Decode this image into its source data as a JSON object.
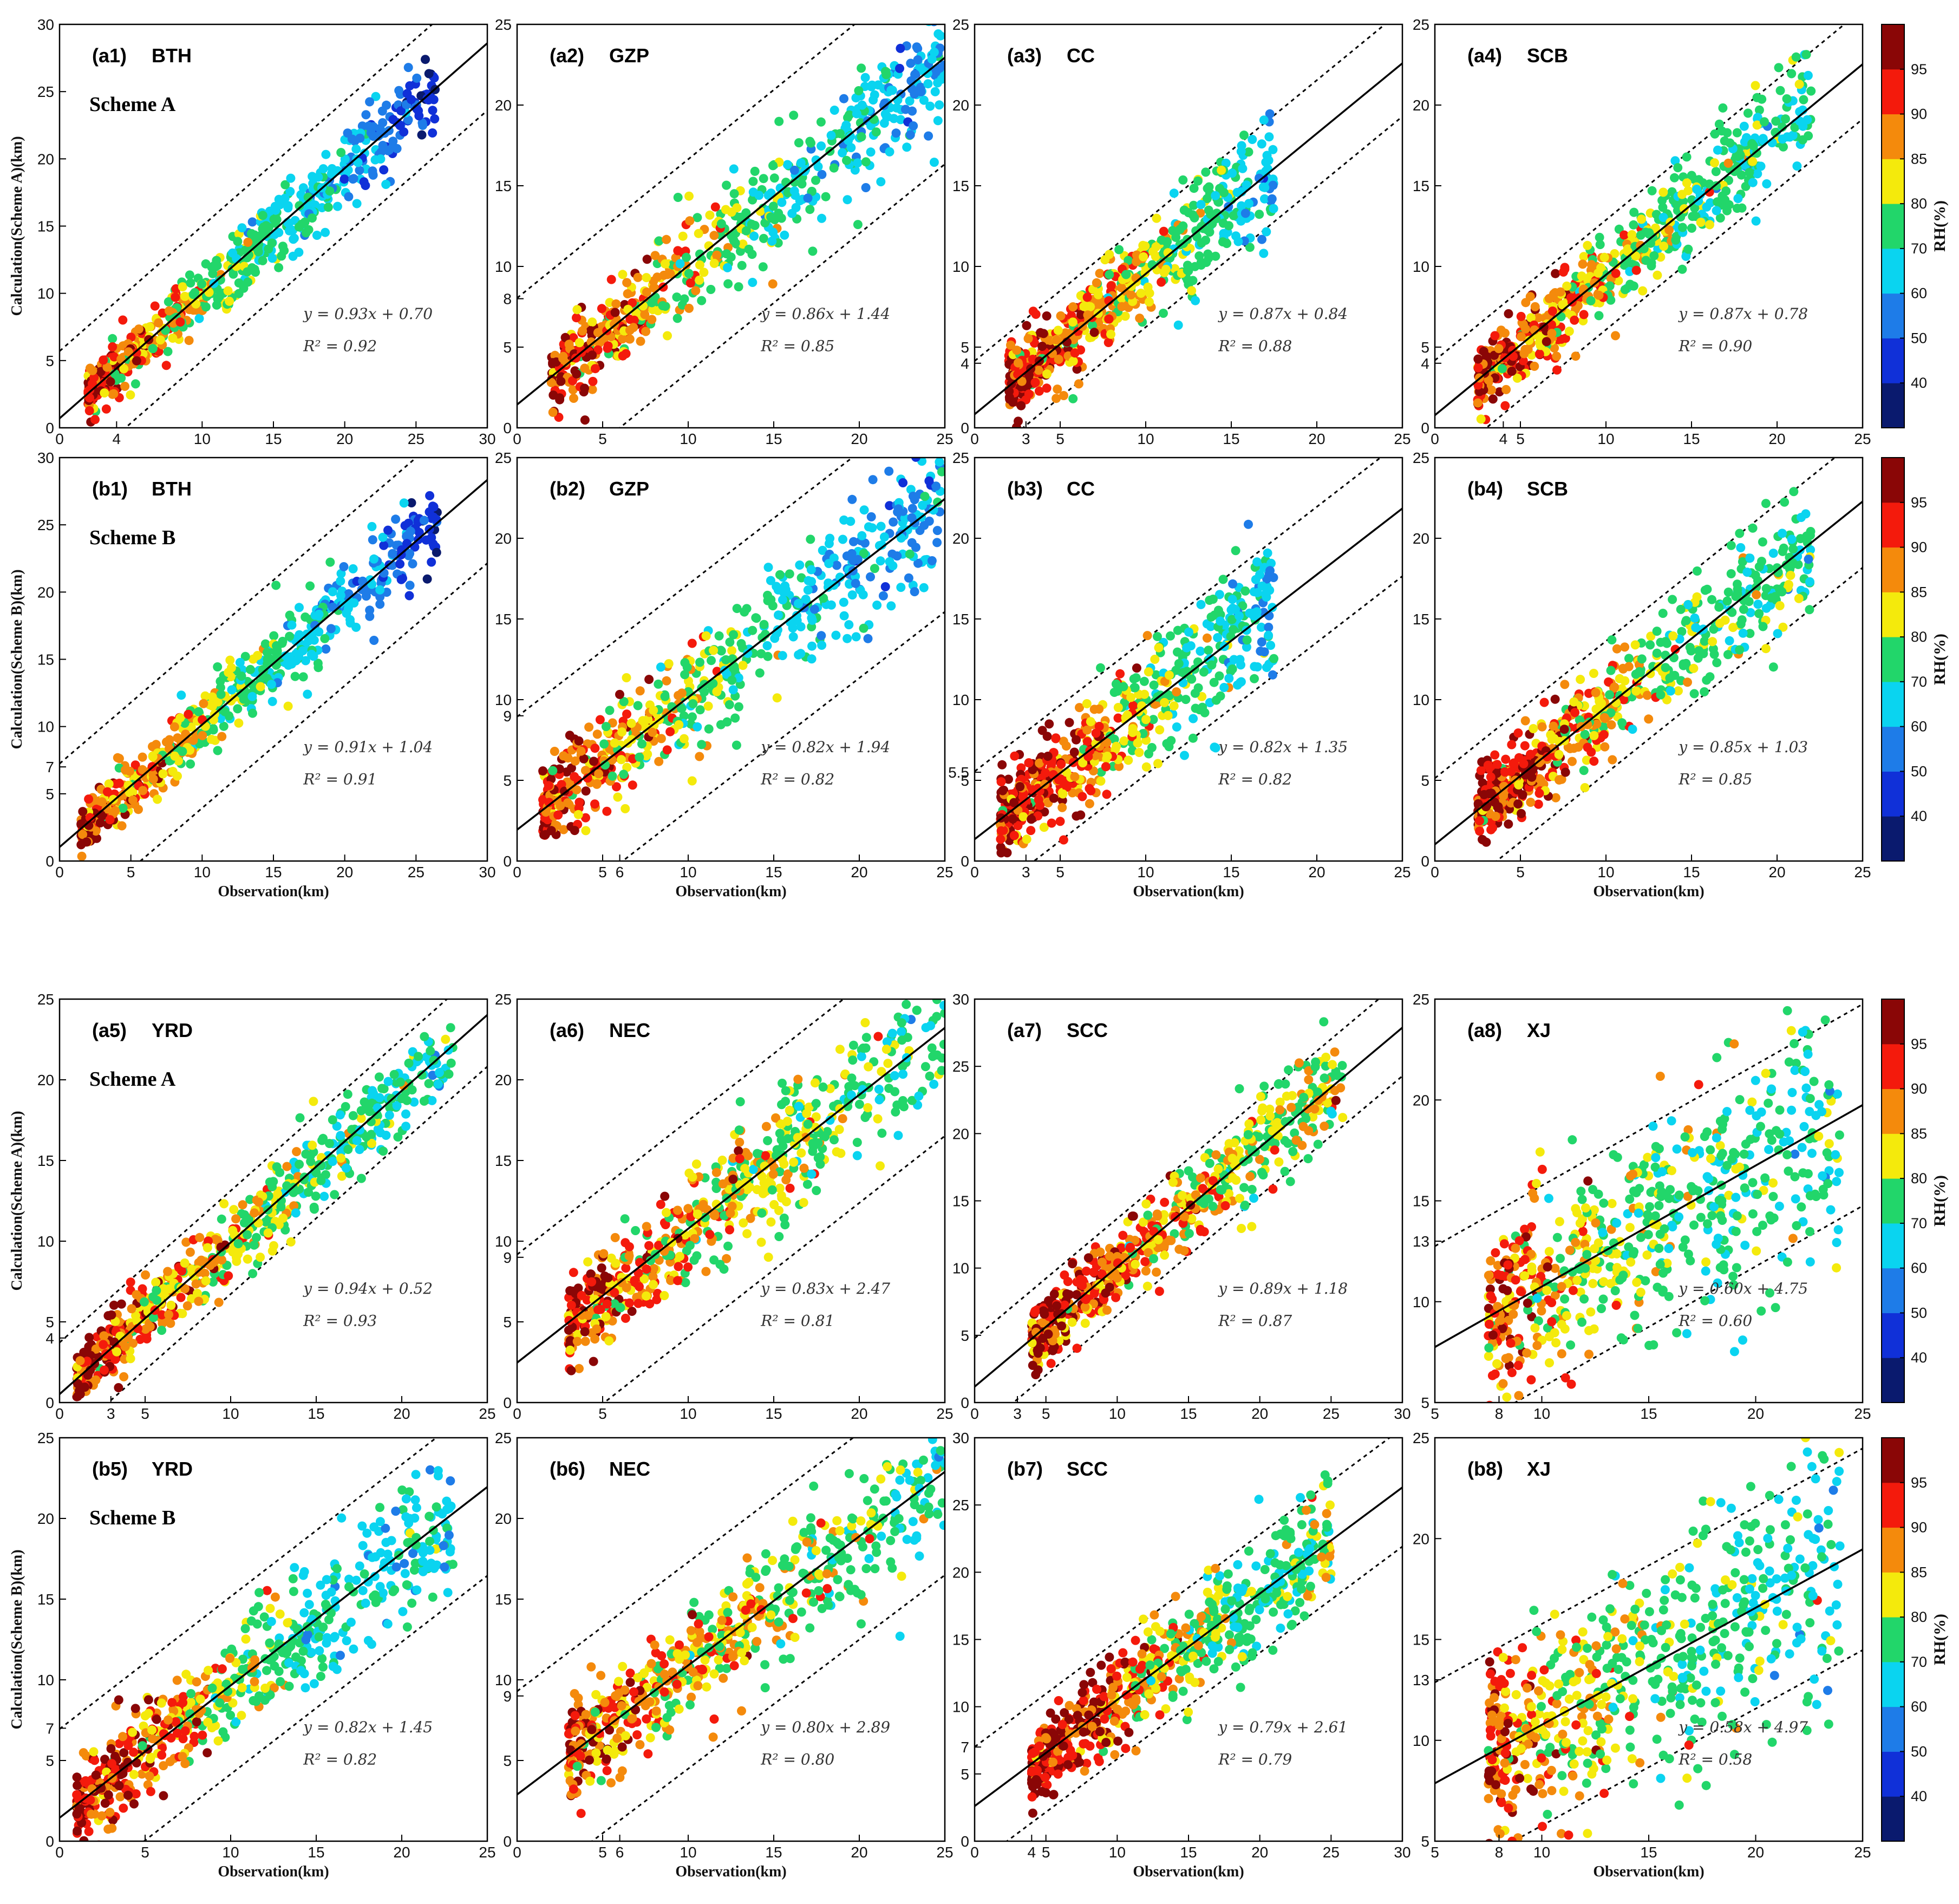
{
  "figure": {
    "xlabel": "Observation(km)",
    "ylabel_a": "Calculation(Scheme A)(km)",
    "ylabel_b": "Calculation(Scheme B)(km)",
    "scheme_a_label": "Scheme A",
    "scheme_b_label": "Scheme B"
  },
  "colorbar": {
    "label": "RH(%)",
    "ticks": [
      "40",
      "50",
      "60",
      "70",
      "80",
      "85",
      "90",
      "95"
    ],
    "colors": [
      "#0a1a6e",
      "#1030d8",
      "#1e7ce8",
      "#0ad4f0",
      "#22d66a",
      "#f4ea0c",
      "#f48a0c",
      "#f41a0c",
      "#8a0606"
    ]
  },
  "chart_data": [
    {
      "id": "a1",
      "type": "scatter",
      "label": "(a1)",
      "region": "BTH",
      "scheme": "A",
      "xlim": [
        0,
        30
      ],
      "ylim": [
        0,
        30
      ],
      "xticks": [
        "0",
        "4",
        "10",
        "15",
        "20",
        "25",
        "30"
      ],
      "yticks": [
        "0",
        "5",
        "10",
        "15",
        "20",
        "25",
        "30"
      ],
      "slope": 0.93,
      "intercept": 0.7,
      "r2": 0.92,
      "band": 5,
      "equation": "y = 0.93x + 0.70",
      "r2_text": "R² = 0.92",
      "obs_range": [
        2,
        26.5
      ],
      "rh_by_vis": [
        [
          2,
          93
        ],
        [
          8,
          84
        ],
        [
          14,
          72
        ],
        [
          20,
          62
        ],
        [
          26,
          45
        ]
      ]
    },
    {
      "id": "a2",
      "type": "scatter",
      "label": "(a2)",
      "region": "GZP",
      "scheme": "A",
      "xlim": [
        0,
        25
      ],
      "ylim": [
        0,
        25
      ],
      "xticks": [
        "0",
        "5",
        "10",
        "15",
        "20",
        "25"
      ],
      "yticks": [
        "0",
        "5",
        "8",
        "10",
        "15",
        "20",
        "25"
      ],
      "slope": 0.86,
      "intercept": 1.44,
      "r2": 0.85,
      "band": 6.6,
      "equation": "y = 0.86x + 1.44",
      "r2_text": "R² = 0.85",
      "obs_range": [
        2,
        25
      ],
      "rh_by_vis": [
        [
          2,
          92
        ],
        [
          8,
          84
        ],
        [
          14,
          75
        ],
        [
          20,
          67
        ],
        [
          25,
          58
        ]
      ]
    },
    {
      "id": "a3",
      "type": "scatter",
      "label": "(a3)",
      "region": "CC",
      "scheme": "A",
      "xlim": [
        0,
        25
      ],
      "ylim": [
        0,
        25
      ],
      "xticks": [
        "0",
        "3",
        "5",
        "10",
        "15",
        "20",
        "25"
      ],
      "yticks": [
        "0",
        "4",
        "5",
        "10",
        "15",
        "20",
        "25"
      ],
      "slope": 0.87,
      "intercept": 0.84,
      "r2": 0.88,
      "band": 3.3,
      "equation": "y = 0.87x + 0.84",
      "r2_text": "R² = 0.88",
      "obs_range": [
        2,
        17.5
      ],
      "rh_by_vis": [
        [
          2,
          95
        ],
        [
          6,
          88
        ],
        [
          10,
          82
        ],
        [
          14,
          72
        ],
        [
          17.5,
          62
        ]
      ]
    },
    {
      "id": "a4",
      "type": "scatter",
      "label": "(a4)",
      "region": "SCB",
      "scheme": "A",
      "xlim": [
        0,
        25
      ],
      "ylim": [
        0,
        25
      ],
      "xticks": [
        "0",
        "4",
        "5",
        "10",
        "15",
        "20",
        "25"
      ],
      "yticks": [
        "0",
        "4",
        "5",
        "10",
        "15",
        "20",
        "25"
      ],
      "slope": 0.87,
      "intercept": 0.78,
      "r2": 0.9,
      "band": 3.4,
      "equation": "y = 0.87x + 0.78",
      "r2_text": "R² = 0.90",
      "obs_range": [
        2.5,
        22
      ],
      "rh_by_vis": [
        [
          2.5,
          95
        ],
        [
          6,
          90
        ],
        [
          10,
          84
        ],
        [
          15,
          75
        ],
        [
          22,
          72
        ]
      ]
    },
    {
      "id": "b1",
      "type": "scatter",
      "label": "(b1)",
      "region": "BTH",
      "scheme": "B",
      "xlim": [
        0,
        30
      ],
      "ylim": [
        0,
        30
      ],
      "xticks": [
        "0",
        "5",
        "10",
        "15",
        "20",
        "25",
        "30"
      ],
      "yticks": [
        "0",
        "5",
        "7",
        "10",
        "15",
        "20",
        "25",
        "30"
      ],
      "slope": 0.91,
      "intercept": 1.04,
      "r2": 0.91,
      "band": 6.2,
      "equation": "y = 0.91x + 1.04",
      "r2_text": "R² = 0.91",
      "obs_range": [
        1.5,
        26.5
      ],
      "rh_by_vis": [
        [
          1.5,
          94
        ],
        [
          8,
          84
        ],
        [
          14,
          72
        ],
        [
          20,
          62
        ],
        [
          26,
          45
        ]
      ]
    },
    {
      "id": "b2",
      "type": "scatter",
      "label": "(b2)",
      "region": "GZP",
      "scheme": "B",
      "xlim": [
        0,
        25
      ],
      "ylim": [
        0,
        25
      ],
      "xticks": [
        "0",
        "5",
        "6",
        "10",
        "15",
        "20",
        "25"
      ],
      "yticks": [
        "0",
        "5",
        "9",
        "10",
        "15",
        "20",
        "25"
      ],
      "slope": 0.82,
      "intercept": 1.94,
      "r2": 0.82,
      "band": 7,
      "equation": "y = 0.82x + 1.94",
      "r2_text": "R² = 0.82",
      "obs_range": [
        1.5,
        25
      ],
      "rh_by_vis": [
        [
          1.5,
          93
        ],
        [
          8,
          84
        ],
        [
          14,
          72
        ],
        [
          20,
          62
        ],
        [
          25,
          58
        ]
      ]
    },
    {
      "id": "b3",
      "type": "scatter",
      "label": "(b3)",
      "region": "CC",
      "scheme": "B",
      "xlim": [
        0,
        25
      ],
      "ylim": [
        0,
        25
      ],
      "xticks": [
        "0",
        "3",
        "5",
        "10",
        "15",
        "20",
        "25"
      ],
      "yticks": [
        "0",
        "5",
        "5.5",
        "10",
        "15",
        "20",
        "25"
      ],
      "slope": 0.82,
      "intercept": 1.35,
      "r2": 0.82,
      "band": 4.2,
      "equation": "y = 0.82x + 1.35",
      "r2_text": "R² = 0.82",
      "obs_range": [
        1.5,
        17.5
      ],
      "rh_by_vis": [
        [
          1.5,
          95
        ],
        [
          6,
          90
        ],
        [
          10,
          80
        ],
        [
          14,
          70
        ],
        [
          17.5,
          62
        ]
      ]
    },
    {
      "id": "b4",
      "type": "scatter",
      "label": "(b4)",
      "region": "SCB",
      "scheme": "B",
      "xlim": [
        0,
        25
      ],
      "ylim": [
        0,
        25
      ],
      "xticks": [
        "0",
        "5",
        "10",
        "15",
        "20",
        "25"
      ],
      "yticks": [
        "0",
        "5",
        "10",
        "15",
        "20",
        "25"
      ],
      "slope": 0.85,
      "intercept": 1.03,
      "r2": 0.85,
      "band": 4.1,
      "equation": "y = 0.85x + 1.03",
      "r2_text": "R² = 0.85",
      "obs_range": [
        2.5,
        22
      ],
      "rh_by_vis": [
        [
          2.5,
          95
        ],
        [
          6,
          90
        ],
        [
          10,
          84
        ],
        [
          15,
          75
        ],
        [
          22,
          72
        ]
      ]
    },
    {
      "id": "a5",
      "type": "scatter",
      "label": "(a5)",
      "region": "YRD",
      "scheme": "A",
      "xlim": [
        0,
        25
      ],
      "ylim": [
        0,
        25
      ],
      "xticks": [
        "0",
        "3",
        "5",
        "10",
        "15",
        "20",
        "25"
      ],
      "yticks": [
        "0",
        "4",
        "5",
        "10",
        "15",
        "20",
        "25"
      ],
      "slope": 0.94,
      "intercept": 0.52,
      "r2": 0.93,
      "band": 3.2,
      "equation": "y = 0.94x + 0.52",
      "r2_text": "R² = 0.93",
      "obs_range": [
        1,
        23
      ],
      "rh_by_vis": [
        [
          1,
          95
        ],
        [
          6,
          88
        ],
        [
          11,
          82
        ],
        [
          16,
          74
        ],
        [
          23,
          70
        ]
      ]
    },
    {
      "id": "a6",
      "type": "scatter",
      "label": "(a6)",
      "region": "NEC",
      "scheme": "A",
      "xlim": [
        0,
        25
      ],
      "ylim": [
        0,
        25
      ],
      "xticks": [
        "0",
        "5",
        "10",
        "15",
        "20",
        "25"
      ],
      "yticks": [
        "0",
        "5",
        "9",
        "10",
        "15",
        "20",
        "25"
      ],
      "slope": 0.83,
      "intercept": 2.47,
      "r2": 0.81,
      "band": 6.7,
      "equation": "y = 0.83x + 2.47",
      "r2_text": "R² = 0.81",
      "obs_range": [
        3,
        25
      ],
      "rh_by_vis": [
        [
          3,
          92
        ],
        [
          9,
          86
        ],
        [
          14,
          82
        ],
        [
          20,
          76
        ],
        [
          25,
          72
        ]
      ]
    },
    {
      "id": "a7",
      "type": "scatter",
      "label": "(a7)",
      "region": "SCC",
      "scheme": "A",
      "xlim": [
        0,
        30
      ],
      "ylim": [
        0,
        30
      ],
      "xticks": [
        "0",
        "3",
        "5",
        "10",
        "15",
        "20",
        "25",
        "30"
      ],
      "yticks": [
        "0",
        "5",
        "10",
        "15",
        "20",
        "25",
        "30"
      ],
      "slope": 0.89,
      "intercept": 1.18,
      "r2": 0.87,
      "band": 3.6,
      "equation": "y = 0.89x + 1.18",
      "r2_text": "R² = 0.87",
      "obs_range": [
        4,
        26
      ],
      "rh_by_vis": [
        [
          4,
          95
        ],
        [
          10,
          90
        ],
        [
          15,
          86
        ],
        [
          20,
          80
        ],
        [
          26,
          80
        ]
      ]
    },
    {
      "id": "a8",
      "type": "scatter",
      "label": "(a8)",
      "region": "XJ",
      "scheme": "A",
      "xlim": [
        5,
        25
      ],
      "ylim": [
        5,
        25
      ],
      "xticks": [
        "5",
        "8",
        "10",
        "15",
        "20",
        "25"
      ],
      "yticks": [
        "5",
        "10",
        "13",
        "15",
        "20",
        "25"
      ],
      "slope": 0.6,
      "intercept": 4.75,
      "r2": 0.6,
      "band": 5,
      "equation": "y = 0.60x + 4.75",
      "r2_text": "R² = 0.60",
      "obs_range": [
        7.5,
        24
      ],
      "rh_by_vis": [
        [
          7.5,
          92
        ],
        [
          10,
          86
        ],
        [
          13,
          80
        ],
        [
          17,
          74
        ],
        [
          24,
          70
        ]
      ]
    },
    {
      "id": "b5",
      "type": "scatter",
      "label": "(b5)",
      "region": "YRD",
      "scheme": "B",
      "xlim": [
        0,
        25
      ],
      "ylim": [
        0,
        25
      ],
      "xticks": [
        "0",
        "5",
        "10",
        "15",
        "20",
        "25"
      ],
      "yticks": [
        "0",
        "5",
        "7",
        "10",
        "15",
        "20",
        "25"
      ],
      "slope": 0.82,
      "intercept": 1.45,
      "r2": 0.82,
      "band": 5.5,
      "equation": "y = 0.82x + 1.45",
      "r2_text": "R² = 0.82",
      "obs_range": [
        1,
        23
      ],
      "rh_by_vis": [
        [
          1,
          96
        ],
        [
          6,
          90
        ],
        [
          11,
          78
        ],
        [
          16,
          68
        ],
        [
          23,
          66
        ]
      ]
    },
    {
      "id": "b6",
      "type": "scatter",
      "label": "(b6)",
      "region": "NEC",
      "scheme": "B",
      "xlim": [
        0,
        25
      ],
      "ylim": [
        0,
        25
      ],
      "xticks": [
        "0",
        "5",
        "6",
        "10",
        "15",
        "20",
        "25"
      ],
      "yticks": [
        "0",
        "5",
        "9",
        "10",
        "15",
        "20",
        "25"
      ],
      "slope": 0.8,
      "intercept": 2.89,
      "r2": 0.8,
      "band": 6.4,
      "equation": "y = 0.80x + 2.89",
      "r2_text": "R² = 0.80",
      "obs_range": [
        3,
        25
      ],
      "rh_by_vis": [
        [
          3,
          92
        ],
        [
          9,
          86
        ],
        [
          14,
          82
        ],
        [
          20,
          76
        ],
        [
          25,
          72
        ]
      ]
    },
    {
      "id": "b7",
      "type": "scatter",
      "label": "(b7)",
      "region": "SCC",
      "scheme": "B",
      "xlim": [
        0,
        30
      ],
      "ylim": [
        0,
        30
      ],
      "xticks": [
        "0",
        "4",
        "5",
        "10",
        "15",
        "20",
        "25",
        "30"
      ],
      "yticks": [
        "0",
        "5",
        "7",
        "10",
        "15",
        "20",
        "25",
        "30"
      ],
      "slope": 0.79,
      "intercept": 2.61,
      "r2": 0.79,
      "band": 4.4,
      "equation": "y = 0.79x + 2.61",
      "r2_text": "R² = 0.79",
      "obs_range": [
        4,
        25
      ],
      "rh_by_vis": [
        [
          4,
          96
        ],
        [
          10,
          90
        ],
        [
          15,
          80
        ],
        [
          20,
          70
        ],
        [
          25,
          78
        ]
      ]
    },
    {
      "id": "b8",
      "type": "scatter",
      "label": "(b8)",
      "region": "XJ",
      "scheme": "B",
      "xlim": [
        5,
        25
      ],
      "ylim": [
        5,
        25
      ],
      "xticks": [
        "5",
        "8",
        "10",
        "15",
        "20",
        "25"
      ],
      "yticks": [
        "5",
        "10",
        "13",
        "15",
        "20",
        "25"
      ],
      "slope": 0.58,
      "intercept": 4.97,
      "r2": 0.58,
      "band": 5,
      "equation": "y = 0.58x + 4.97",
      "r2_text": "R² = 0.58",
      "obs_range": [
        7.5,
        24
      ],
      "rh_by_vis": [
        [
          7.5,
          92
        ],
        [
          10,
          86
        ],
        [
          13,
          80
        ],
        [
          17,
          74
        ],
        [
          24,
          70
        ]
      ]
    }
  ]
}
